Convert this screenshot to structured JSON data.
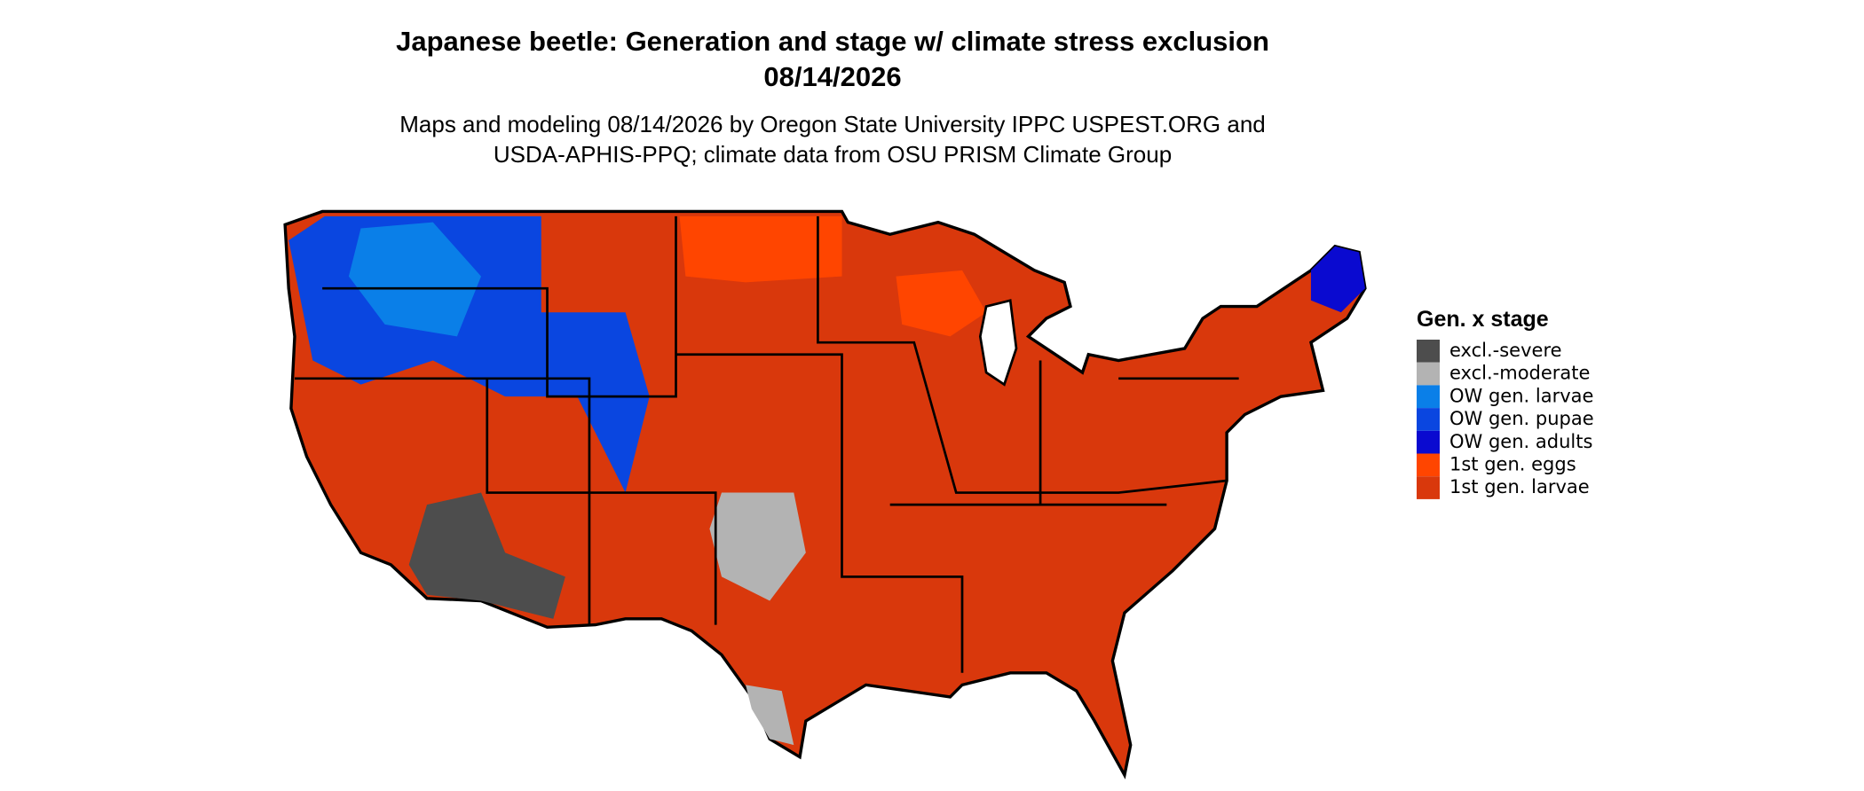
{
  "title": [
    "Japanese beetle: Generation and stage w/ climate stress exclusion",
    "08/14/2026"
  ],
  "subtitle": [
    "Maps and modeling 08/14/2026 by Oregon State University IPPC USPEST.ORG and",
    "USDA-APHIS-PPQ; climate data from OSU PRISM Climate Group"
  ],
  "legend": {
    "title": "Gen. x stage",
    "items": [
      {
        "label": "excl.-severe",
        "color": "#4d4d4d"
      },
      {
        "label": "excl.-moderate",
        "color": "#b3b3b3"
      },
      {
        "label": "OW gen. larvae",
        "color": "#0a7fe8"
      },
      {
        "label": "OW gen. pupae",
        "color": "#0a46e0"
      },
      {
        "label": "OW gen. adults",
        "color": "#0a0ad0"
      },
      {
        "label": "1st gen. eggs",
        "color": "#ff4500"
      },
      {
        "label": "1st gen. larvae",
        "color": "#d9380c"
      }
    ]
  }
}
